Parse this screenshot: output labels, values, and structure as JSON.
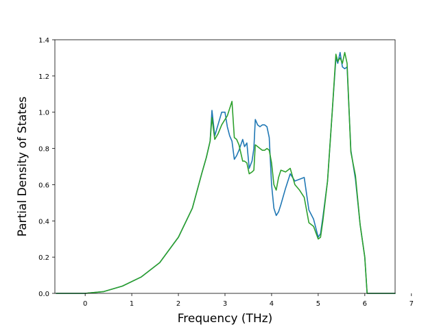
{
  "chart_data": {
    "type": "line",
    "title": "",
    "xlabel": "Frequency (THz)",
    "ylabel": "Partial Density of States",
    "xlim": [
      -0.65,
      6.65
    ],
    "ylim": [
      0.0,
      1.4
    ],
    "x_ticks": [
      0,
      1,
      2,
      3,
      4,
      5,
      6,
      7
    ],
    "y_ticks": [
      0.0,
      0.2,
      0.4,
      0.6,
      0.8,
      1.0,
      1.2,
      1.4
    ],
    "x_tick_labels": [
      "0",
      "1",
      "2",
      "3",
      "4",
      "5",
      "6",
      "7"
    ],
    "y_tick_labels": [
      "0.0",
      "0.2",
      "0.4",
      "0.6",
      "0.8",
      "1.0",
      "1.2",
      "1.4"
    ],
    "grid": false,
    "series": [
      {
        "color": "#1f77b4",
        "x": [
          -0.62,
          0.0,
          0.4,
          0.8,
          1.2,
          1.6,
          2.0,
          2.3,
          2.5,
          2.6,
          2.68,
          2.72,
          2.78,
          2.85,
          2.93,
          3.0,
          3.05,
          3.1,
          3.15,
          3.2,
          3.25,
          3.3,
          3.38,
          3.42,
          3.47,
          3.52,
          3.58,
          3.62,
          3.65,
          3.7,
          3.75,
          3.8,
          3.85,
          3.9,
          3.95,
          4.0,
          4.05,
          4.1,
          4.15,
          4.2,
          4.3,
          4.4,
          4.5,
          4.6,
          4.7,
          4.8,
          4.9,
          5.0,
          5.05,
          5.1,
          5.2,
          5.3,
          5.38,
          5.42,
          5.47,
          5.52,
          5.57,
          5.62,
          5.7,
          5.8,
          5.9,
          6.0,
          6.05,
          6.1,
          6.3,
          6.65
        ],
        "y": [
          0.0,
          0.0,
          0.01,
          0.04,
          0.09,
          0.17,
          0.31,
          0.47,
          0.66,
          0.75,
          0.84,
          1.01,
          0.87,
          0.93,
          1.0,
          1.0,
          0.92,
          0.87,
          0.84,
          0.74,
          0.76,
          0.79,
          0.85,
          0.81,
          0.83,
          0.69,
          0.73,
          0.8,
          0.96,
          0.93,
          0.92,
          0.93,
          0.93,
          0.92,
          0.86,
          0.6,
          0.47,
          0.43,
          0.45,
          0.49,
          0.58,
          0.66,
          0.62,
          0.63,
          0.64,
          0.46,
          0.41,
          0.31,
          0.33,
          0.42,
          0.62,
          1.0,
          1.3,
          1.27,
          1.33,
          1.25,
          1.24,
          1.25,
          0.79,
          0.63,
          0.38,
          0.2,
          0.0,
          0.0,
          0.0,
          0.0
        ]
      },
      {
        "color": "#2ca02c",
        "x": [
          -0.62,
          0.0,
          0.4,
          0.8,
          1.2,
          1.6,
          2.0,
          2.3,
          2.5,
          2.6,
          2.68,
          2.72,
          2.78,
          2.85,
          2.93,
          3.0,
          3.05,
          3.1,
          3.15,
          3.2,
          3.25,
          3.3,
          3.38,
          3.42,
          3.47,
          3.52,
          3.58,
          3.62,
          3.65,
          3.7,
          3.75,
          3.8,
          3.85,
          3.9,
          3.95,
          4.0,
          4.05,
          4.1,
          4.15,
          4.2,
          4.3,
          4.4,
          4.5,
          4.6,
          4.7,
          4.8,
          4.9,
          5.0,
          5.05,
          5.1,
          5.2,
          5.3,
          5.38,
          5.42,
          5.47,
          5.52,
          5.57,
          5.62,
          5.7,
          5.8,
          5.9,
          6.0,
          6.05,
          6.1,
          6.3,
          6.65
        ],
        "y": [
          0.0,
          0.0,
          0.01,
          0.04,
          0.09,
          0.17,
          0.31,
          0.47,
          0.66,
          0.75,
          0.84,
          0.97,
          0.85,
          0.88,
          0.93,
          0.96,
          0.98,
          1.02,
          1.06,
          0.86,
          0.85,
          0.82,
          0.73,
          0.73,
          0.72,
          0.66,
          0.67,
          0.68,
          0.82,
          0.81,
          0.8,
          0.79,
          0.79,
          0.8,
          0.79,
          0.72,
          0.6,
          0.57,
          0.64,
          0.68,
          0.67,
          0.69,
          0.6,
          0.57,
          0.53,
          0.39,
          0.37,
          0.3,
          0.31,
          0.4,
          0.62,
          1.0,
          1.32,
          1.28,
          1.3,
          1.27,
          1.33,
          1.27,
          0.78,
          0.65,
          0.38,
          0.2,
          0.0,
          0.0,
          0.0,
          0.0
        ]
      }
    ]
  }
}
